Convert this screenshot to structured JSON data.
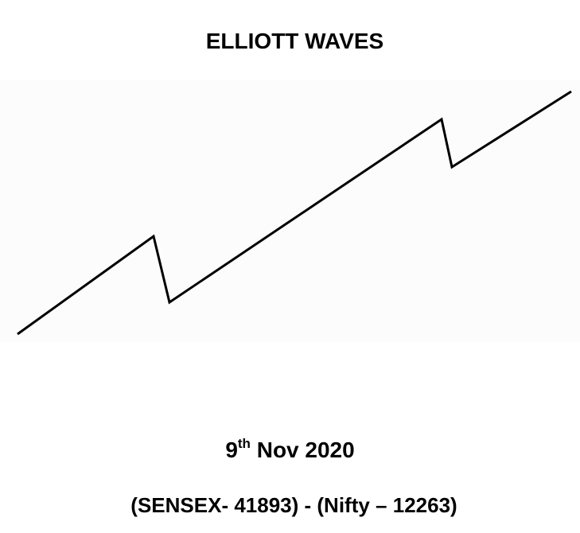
{
  "title": "ELLIOTT WAVES",
  "date": {
    "day": "9",
    "suffix": "th",
    "rest": "Nov 2020"
  },
  "indices": "(SENSEX- 41893) - (Nifty – 12263)"
}
